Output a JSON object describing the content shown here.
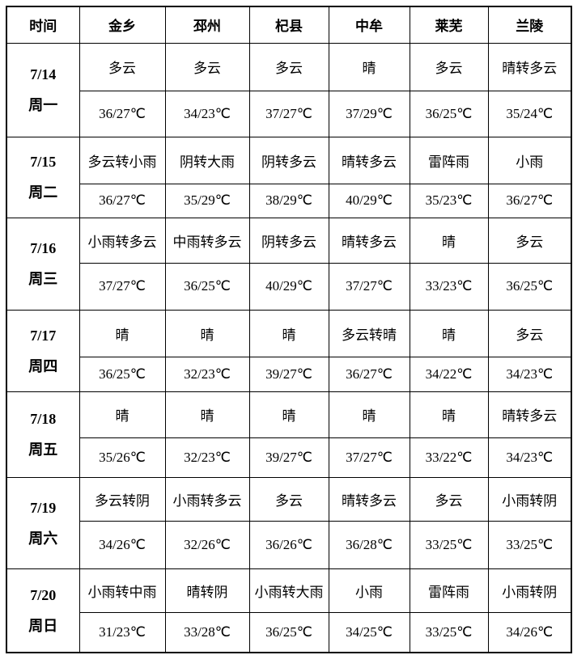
{
  "header": [
    "时间",
    "金乡",
    "邳州",
    "杞县",
    "中牟",
    "莱芜",
    "兰陵"
  ],
  "days": [
    {
      "date": "7/14",
      "weekday": "周一",
      "weather": [
        "多云",
        "多云",
        "多云",
        "晴",
        "多云",
        "晴转多云"
      ],
      "temps": [
        "36/27℃",
        "34/23℃",
        "37/27℃",
        "37/29℃",
        "36/25℃",
        "35/24℃"
      ]
    },
    {
      "date": "7/15",
      "weekday": "周二",
      "weather": [
        "多云转小雨",
        "阴转大雨",
        "阴转多云",
        "晴转多云",
        "雷阵雨",
        "小雨"
      ],
      "temps": [
        "36/27℃",
        "35/29℃",
        "38/29℃",
        "40/29℃",
        "35/23℃",
        "36/27℃"
      ]
    },
    {
      "date": "7/16",
      "weekday": "周三",
      "weather": [
        "小雨转多云",
        "中雨转多云",
        "阴转多云",
        "晴转多云",
        "晴",
        "多云"
      ],
      "temps": [
        "37/27℃",
        "36/25℃",
        "40/29℃",
        "37/27℃",
        "33/23℃",
        "36/25℃"
      ]
    },
    {
      "date": "7/17",
      "weekday": "周四",
      "weather": [
        "晴",
        "晴",
        "晴",
        "多云转晴",
        "晴",
        "多云"
      ],
      "temps": [
        "36/25℃",
        "32/23℃",
        "39/27℃",
        "36/27℃",
        "34/22℃",
        "34/23℃"
      ]
    },
    {
      "date": "7/18",
      "weekday": "周五",
      "weather": [
        "晴",
        "晴",
        "晴",
        "晴",
        "晴",
        "晴转多云"
      ],
      "temps": [
        "35/26℃",
        "32/23℃",
        "39/27℃",
        "37/27℃",
        "33/22℃",
        "34/23℃"
      ]
    },
    {
      "date": "7/19",
      "weekday": "周六",
      "weather": [
        "多云转阴",
        "小雨转多云",
        "多云",
        "晴转多云",
        "多云",
        "小雨转阴"
      ],
      "temps": [
        "34/26℃",
        "32/26℃",
        "36/26℃",
        "36/28℃",
        "33/25℃",
        "33/25℃"
      ]
    },
    {
      "date": "7/20",
      "weekday": "周日",
      "weather": [
        "小雨转中雨",
        "晴转阴",
        "小雨转大雨",
        "小雨",
        "雷阵雨",
        "小雨转阴"
      ],
      "temps": [
        "31/23℃",
        "33/28℃",
        "36/25℃",
        "34/25℃",
        "33/25℃",
        "34/26℃"
      ]
    }
  ]
}
